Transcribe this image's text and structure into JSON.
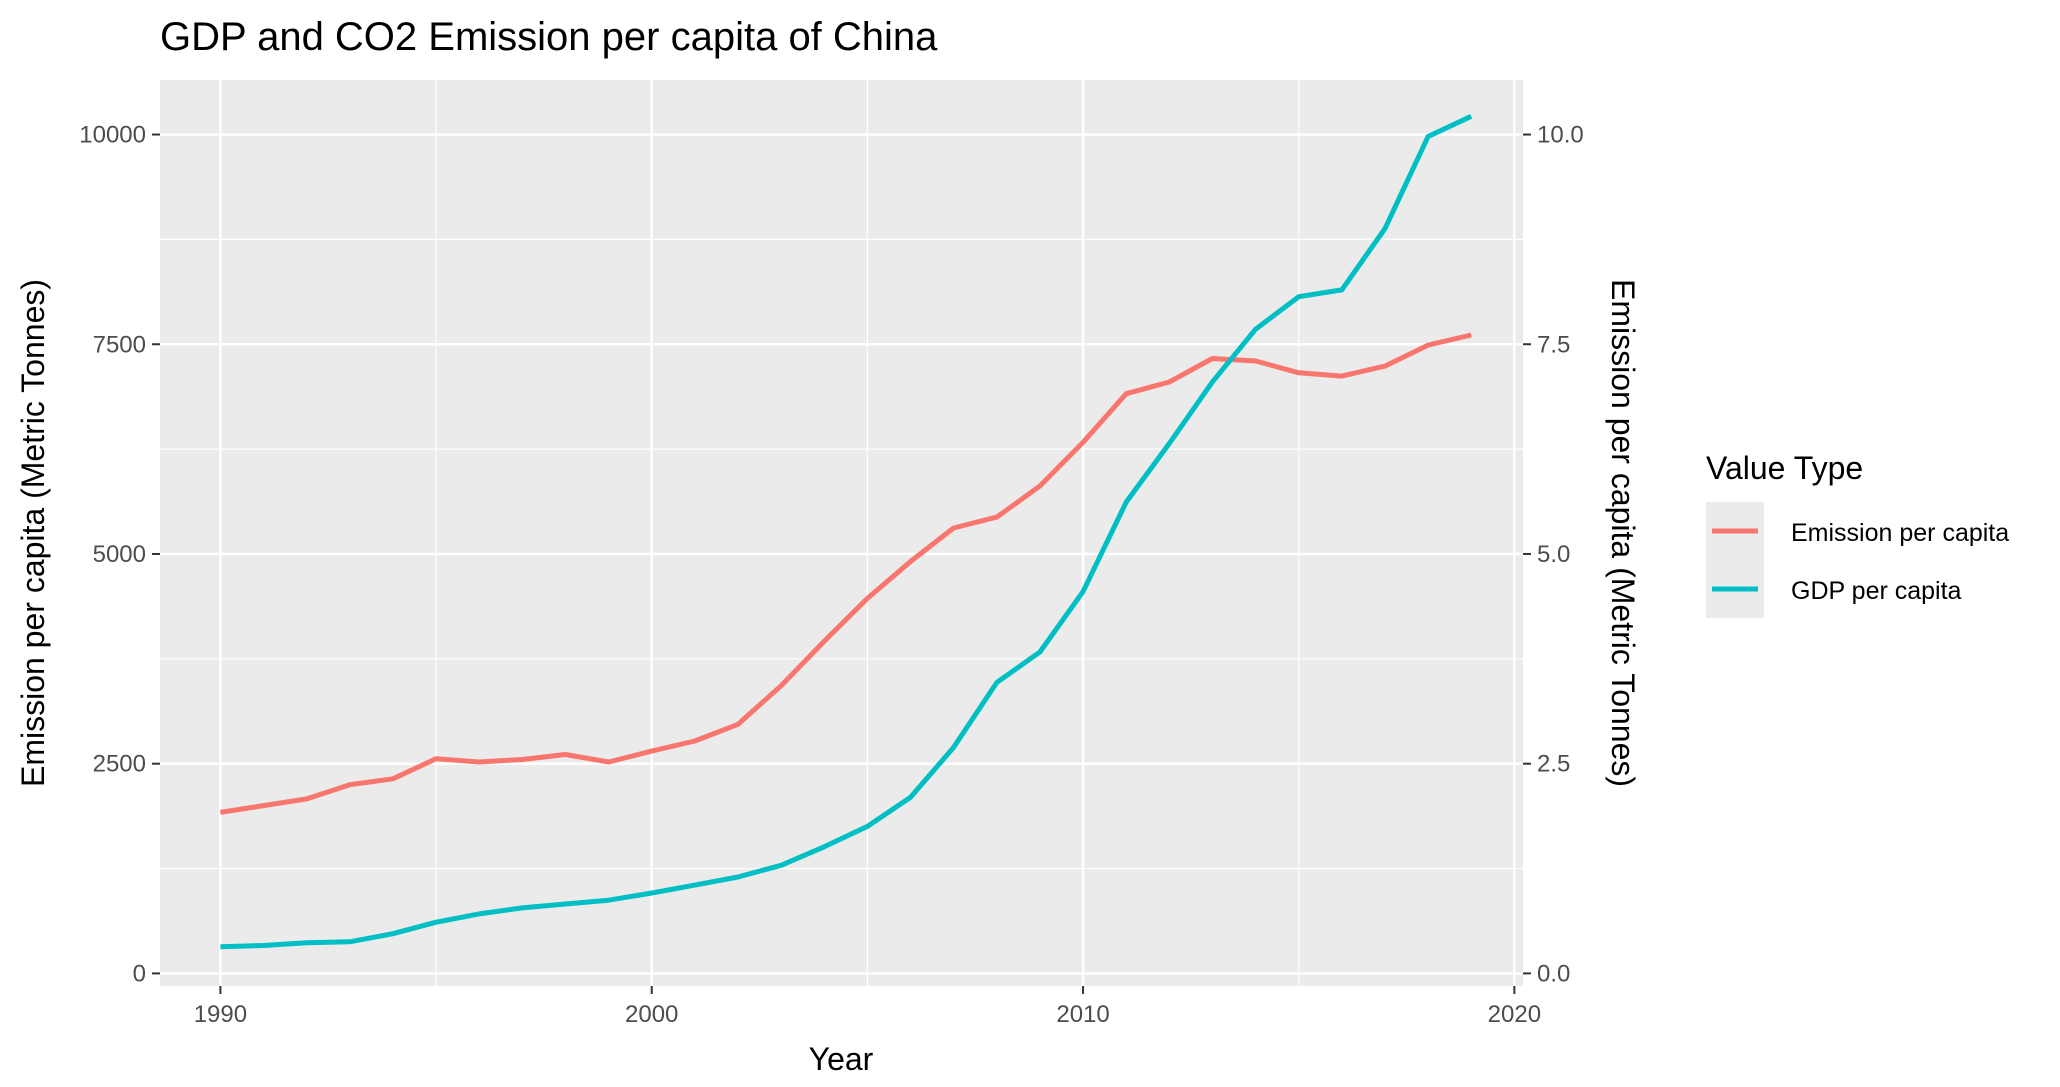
{
  "chart_data": {
    "type": "line",
    "title": "GDP and CO2 Emission per capita of China",
    "xlabel": "Year",
    "ylabel": "Emission per capita (Metric Tonnes)",
    "y2label": "Emission per capita (Metric Tonnes)",
    "xlim": [
      1988.6,
      2020.2
    ],
    "ylim": [
      -150,
      10650
    ],
    "y2lim": [
      -0.15,
      10.65
    ],
    "x_ticks": [
      1990,
      2000,
      2010,
      2020
    ],
    "x_tick_labels": [
      "1990",
      "2000",
      "2010",
      "2020"
    ],
    "y_ticks": [
      0,
      2500,
      5000,
      7500,
      10000
    ],
    "y_tick_labels": [
      "0",
      "2500",
      "5000",
      "7500",
      "10000"
    ],
    "y2_ticks": [
      0,
      2.5,
      5.0,
      7.5,
      10.0
    ],
    "y2_tick_labels": [
      "0.0",
      "2.5",
      "5.0",
      "7.5",
      "10.0"
    ],
    "grid": true,
    "background": "#ebebeb",
    "legend": {
      "title": "Value Type",
      "position": "right"
    },
    "x": [
      1990,
      1991,
      1992,
      1993,
      1994,
      1995,
      1996,
      1997,
      1998,
      1999,
      2000,
      2001,
      2002,
      2003,
      2004,
      2005,
      2006,
      2007,
      2008,
      2009,
      2010,
      2011,
      2012,
      2013,
      2014,
      2015,
      2016,
      2017,
      2018,
      2019
    ],
    "series": [
      {
        "name": "Emission per capita",
        "color": "#f8766d",
        "axis": "right",
        "values": [
          1.92,
          2.0,
          2.08,
          2.25,
          2.32,
          2.56,
          2.52,
          2.55,
          2.61,
          2.52,
          2.65,
          2.77,
          2.97,
          3.43,
          3.96,
          4.47,
          4.91,
          5.31,
          5.44,
          5.81,
          6.33,
          6.91,
          7.05,
          7.33,
          7.3,
          7.16,
          7.12,
          7.24,
          7.49,
          7.61
        ]
      },
      {
        "name": "GDP per capita",
        "color": "#00bfc4",
        "axis": "left",
        "values": [
          317,
          333,
          366,
          377,
          473,
          610,
          709,
          781,
          828,
          873,
          959,
          1053,
          1149,
          1289,
          1509,
          1753,
          2099,
          2694,
          3468,
          3832,
          4550,
          5618,
          6317,
          7051,
          7679,
          8067,
          8148,
          8879,
          9977,
          10217
        ]
      }
    ]
  }
}
